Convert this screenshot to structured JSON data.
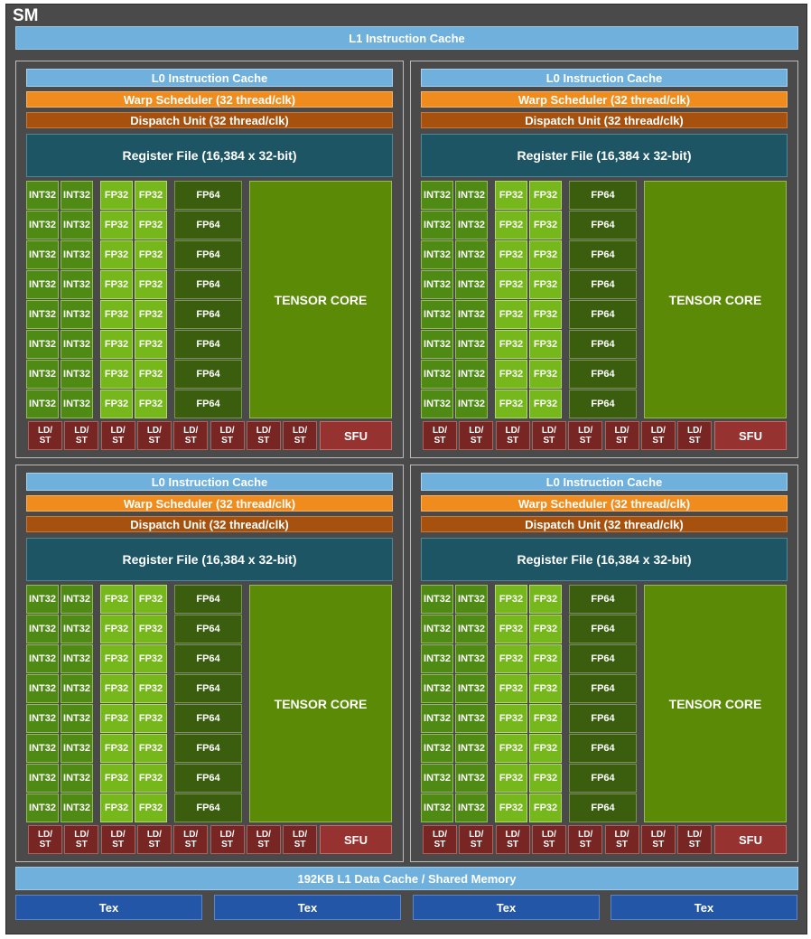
{
  "sm": {
    "title": "SM",
    "l1_instruction_cache": "L1 Instruction Cache",
    "l1_data_cache": "192KB L1 Data Cache / Shared Memory",
    "tex_units": [
      "Tex",
      "Tex",
      "Tex",
      "Tex"
    ]
  },
  "partition": {
    "l0_cache": "L0 Instruction Cache",
    "warp_scheduler": "Warp Scheduler (32 thread/clk)",
    "dispatch_unit": "Dispatch Unit (32 thread/clk)",
    "register_file": "Register File (16,384 x 32-bit)",
    "int32_label": "INT32",
    "fp32_label": "FP32",
    "fp64_label": "FP64",
    "tensor_core": "TENSOR CORE",
    "ldst_line1": "LD/",
    "ldst_line2": "ST",
    "sfu": "SFU"
  },
  "colors": {
    "sm_background": "#4a4a4a",
    "cache": "#6fb0dd",
    "warp_scheduler": "#f08c1e",
    "dispatch_unit": "#a6520e",
    "register_file": "#1e5565",
    "int32": "#4f8a15",
    "fp32": "#76b81c",
    "fp64": "#3a5e0e",
    "tensor_core": "#5a8a06",
    "ldst": "#782623",
    "sfu": "#963230",
    "tex": "#2356a6"
  }
}
